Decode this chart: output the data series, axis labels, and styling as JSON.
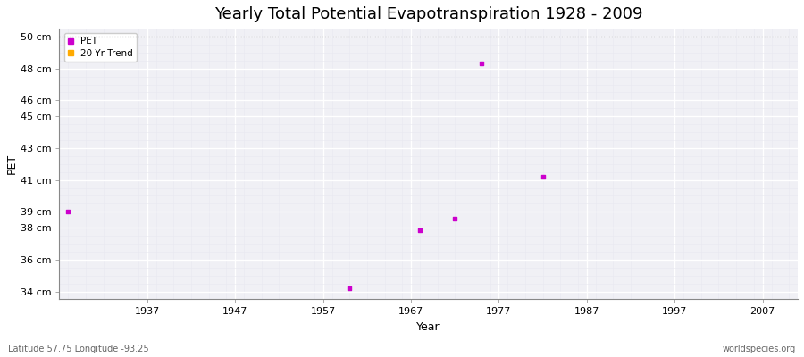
{
  "title": "Yearly Total Potential Evapotranspiration 1928 - 2009",
  "xlabel": "Year",
  "ylabel": "PET",
  "background_color": "#f0f0f5",
  "fig_bg_color": "#ffffff",
  "ylim": [
    33.5,
    50.5
  ],
  "xlim": [
    1927,
    2011
  ],
  "ytick_labels": [
    "34 cm",
    "36 cm",
    "38 cm",
    "39 cm",
    "41 cm",
    "43 cm",
    "45 cm",
    "46 cm",
    "48 cm",
    "50 cm"
  ],
  "ytick_values": [
    34,
    36,
    38,
    39,
    41,
    43,
    45,
    46,
    48,
    50
  ],
  "xtick_values": [
    1937,
    1947,
    1957,
    1967,
    1977,
    1987,
    1997,
    2007
  ],
  "data_points": [
    {
      "year": 1928,
      "value": 39.0
    },
    {
      "year": 1960,
      "value": 34.2
    },
    {
      "year": 1968,
      "value": 37.85
    },
    {
      "year": 1972,
      "value": 38.55
    },
    {
      "year": 1975,
      "value": 48.3
    },
    {
      "year": 1982,
      "value": 41.2
    }
  ],
  "pet_color": "#cc00cc",
  "trend_color": "#ffaa00",
  "dotted_line_y": 50,
  "subtitle_left": "Latitude 57.75 Longitude -93.25",
  "subtitle_right": "worldspecies.org",
  "major_grid_color": "#ffffff",
  "minor_grid_color": "#e8e8f0",
  "title_fontsize": 13,
  "axis_label_fontsize": 9,
  "tick_fontsize": 8,
  "marker_size": 3
}
